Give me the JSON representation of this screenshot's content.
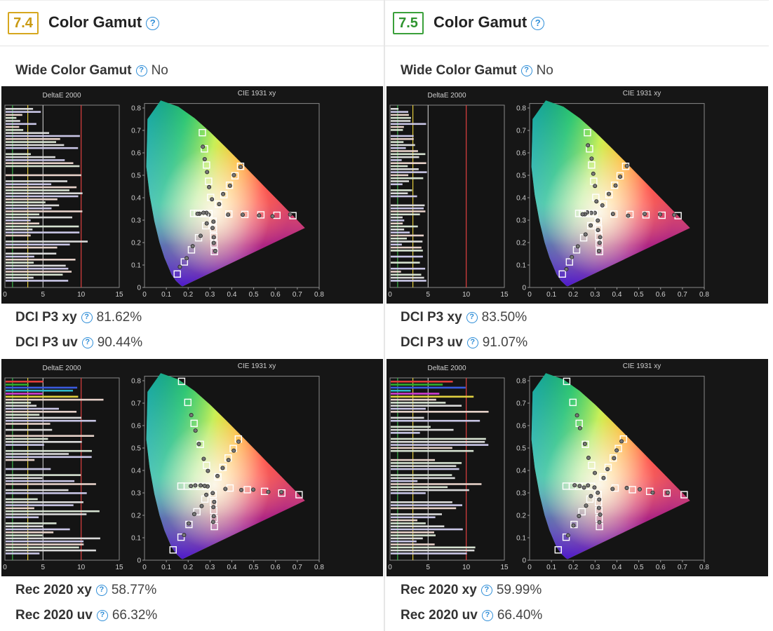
{
  "panels": [
    {
      "score": "7.4",
      "score_color": "#d6a71e",
      "title": "Color Gamut",
      "wide_color": {
        "label": "Wide Color Gamut",
        "value": "No"
      },
      "chart_header_left": "DeltaE 2000",
      "chart_header_right": "CIE 1931 xy",
      "metrics_p3": [
        {
          "label": "DCI P3 xy",
          "value": "81.62%"
        },
        {
          "label": "DCI P3 uv",
          "value": "90.44%"
        }
      ],
      "metrics_rec": [
        {
          "label": "Rec 2020 xy",
          "value": "58.77%"
        },
        {
          "label": "Rec 2020 uv",
          "value": "66.32%"
        }
      ]
    },
    {
      "score": "7.5",
      "score_color": "#3aa03a",
      "title": "Color Gamut",
      "wide_color": {
        "label": "Wide Color Gamut",
        "value": "No"
      },
      "chart_header_left": "DeltaE 2000",
      "chart_header_right": "CIE 1931 xy",
      "metrics_p3": [
        {
          "label": "DCI P3 xy",
          "value": "83.50%"
        },
        {
          "label": "DCI P3 uv",
          "value": "91.07%"
        }
      ],
      "metrics_rec": [
        {
          "label": "Rec 2020 xy",
          "value": "59.99%"
        },
        {
          "label": "Rec 2020 uv",
          "value": "66.40%"
        }
      ]
    }
  ],
  "deltae_ticks": [
    "0",
    "5",
    "10",
    "15"
  ],
  "cie_x_ticks": [
    "0",
    "0.1",
    "0.2",
    "0.3",
    "0.4",
    "0.5",
    "0.6",
    "0.7",
    "0.8"
  ],
  "cie_y_ticks": [
    "0",
    "0.1",
    "0.2",
    "0.3",
    "0.4",
    "0.5",
    "0.6",
    "0.7",
    "0.8"
  ],
  "help_glyph": "?"
}
